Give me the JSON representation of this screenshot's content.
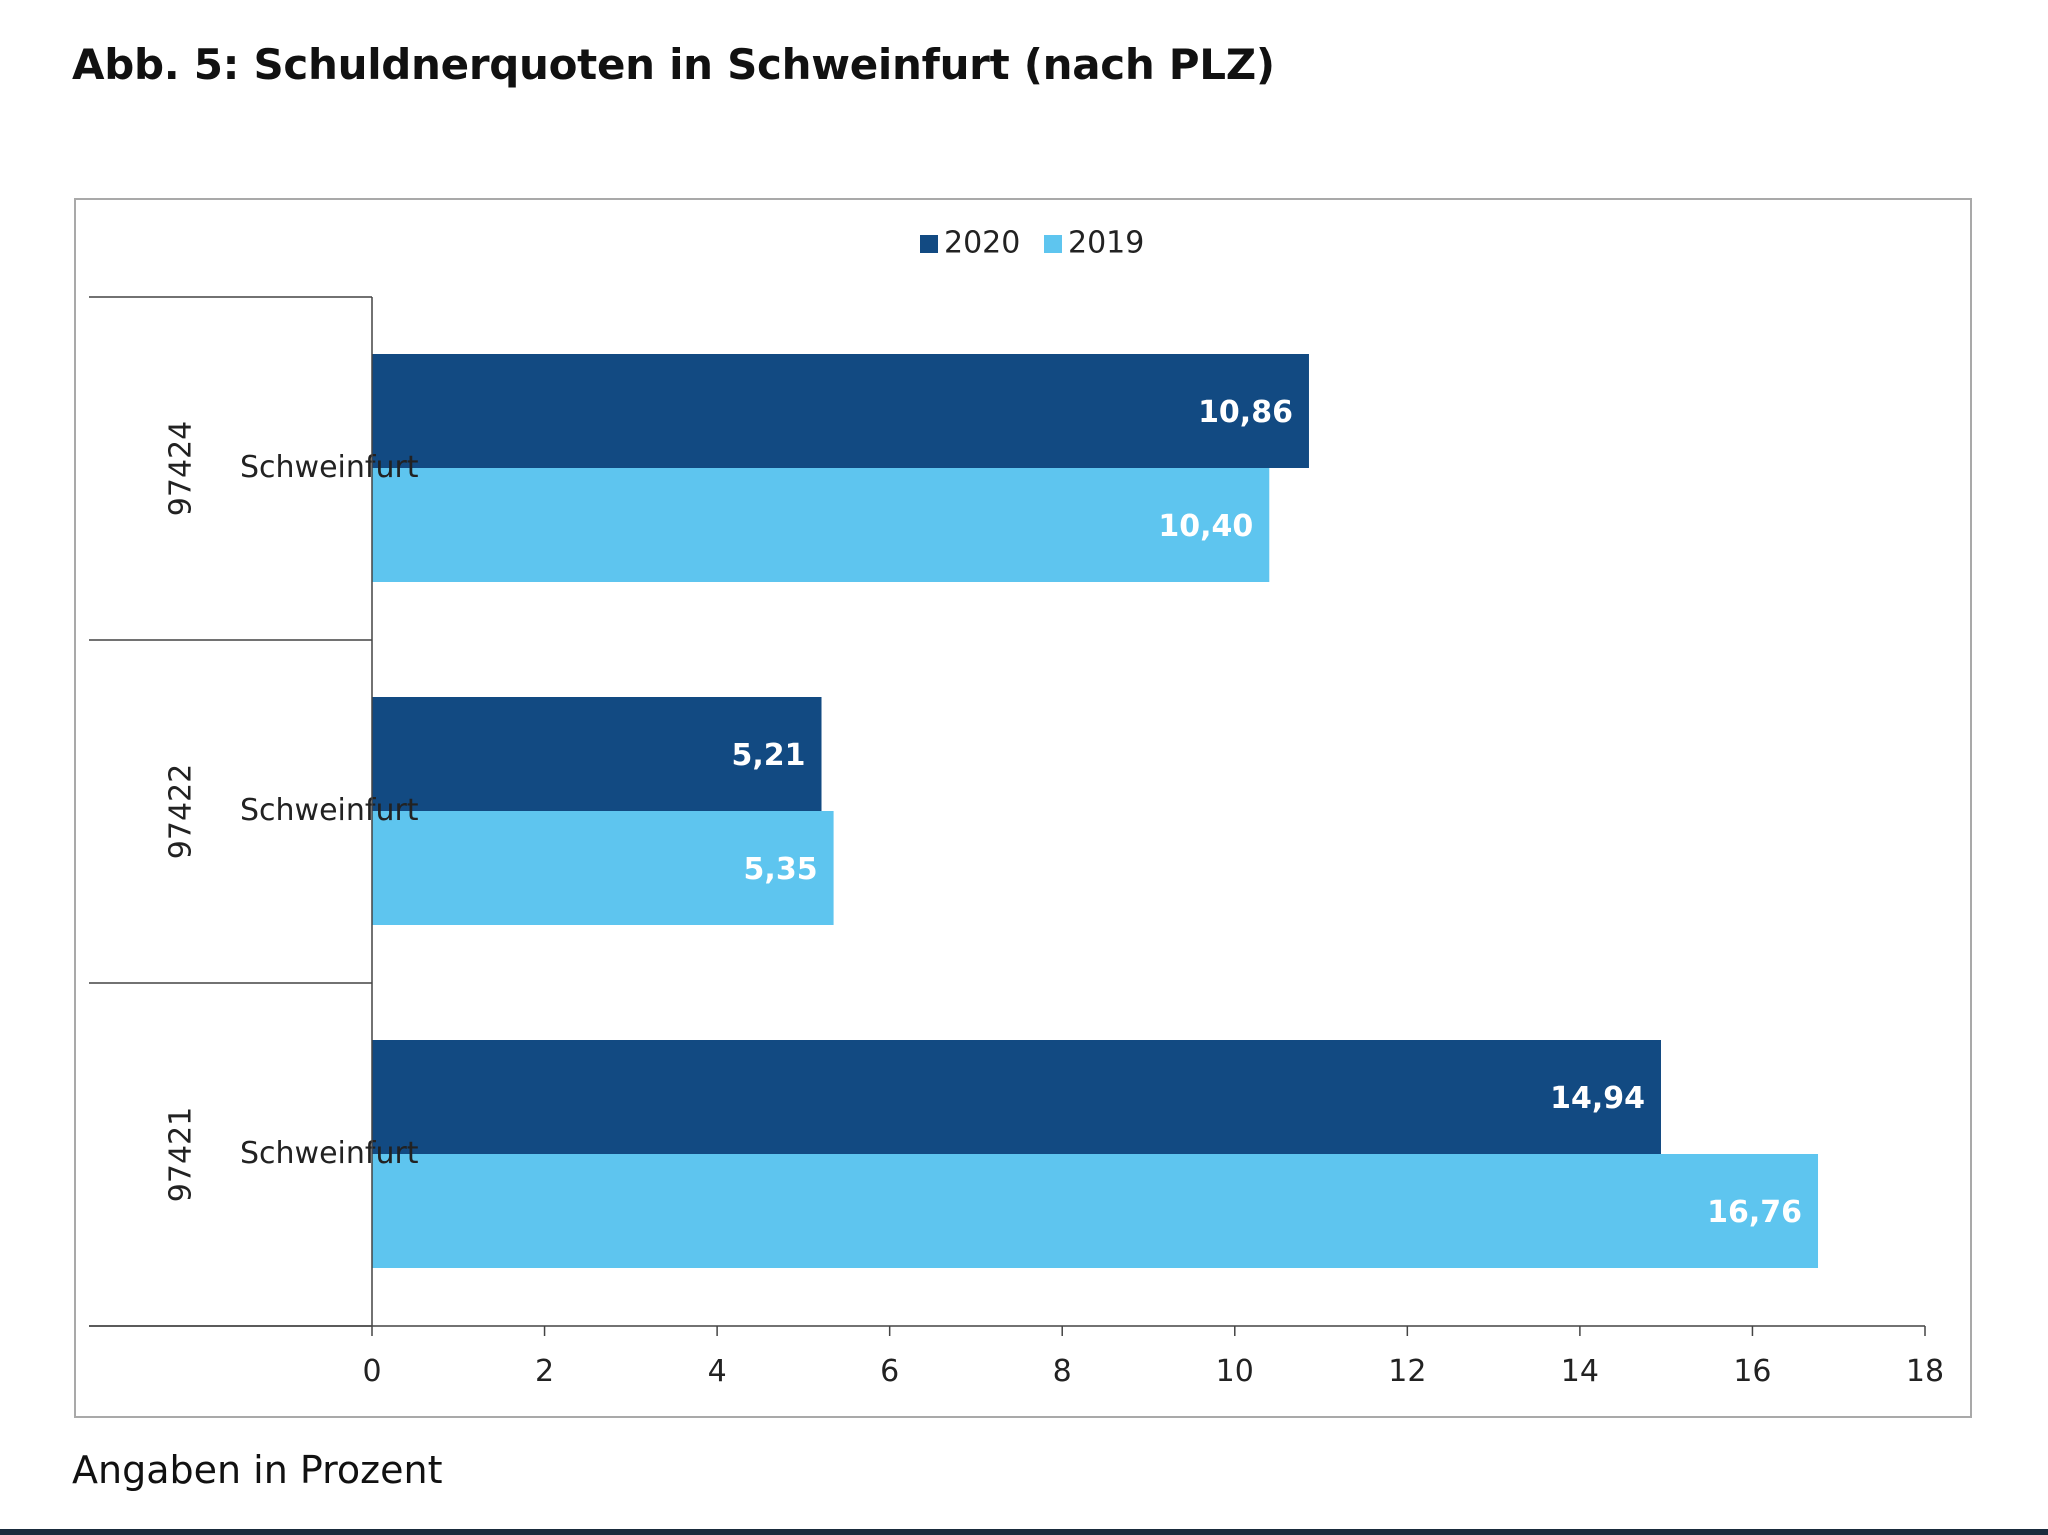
{
  "figure": {
    "title": "Abb. 5:  Schuldnerquoten in Schweinfurt (nach PLZ)",
    "footnote": "Angaben in Prozent"
  },
  "chart_data": {
    "type": "bar",
    "orientation": "horizontal",
    "categories": [
      {
        "plz": "97424",
        "name": "Schweinfurt"
      },
      {
        "plz": "97422",
        "name": "Schweinfurt"
      },
      {
        "plz": "97421",
        "name": "Schweinfurt"
      }
    ],
    "series": [
      {
        "name": "2020",
        "color": "#124a82",
        "values": [
          10.86,
          5.21,
          14.94
        ],
        "labels": [
          "10,86",
          "5,21",
          "14,94"
        ]
      },
      {
        "name": "2019",
        "color": "#5ec5ef",
        "values": [
          10.4,
          5.35,
          16.76
        ],
        "labels": [
          "10,40",
          "5,35",
          "16,76"
        ]
      }
    ],
    "xlim": [
      0,
      18
    ],
    "xticks": [
      0,
      2,
      4,
      6,
      8,
      10,
      12,
      14,
      16,
      18
    ],
    "legend_position": "top-center",
    "grid": false
  }
}
